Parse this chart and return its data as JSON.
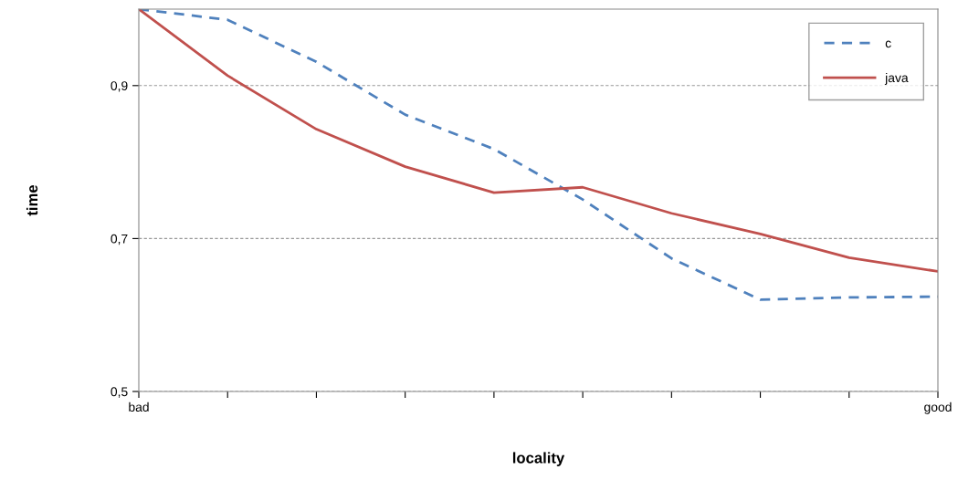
{
  "chart_data": {
    "type": "line",
    "xlabel": "locality",
    "ylabel": "time",
    "categories": [
      "bad",
      null,
      null,
      null,
      null,
      null,
      null,
      null,
      null,
      "good"
    ],
    "series": [
      {
        "name": "c",
        "color": "#4f81bd",
        "line_style": "dashed",
        "values": [
          1.0,
          0.986,
          0.931,
          0.862,
          0.817,
          0.751,
          0.674,
          0.62,
          0.623,
          0.624
        ]
      },
      {
        "name": "java",
        "color": "#c0504d",
        "line_style": "solid",
        "values": [
          1.0,
          0.913,
          0.843,
          0.794,
          0.76,
          0.767,
          0.733,
          0.706,
          0.675,
          0.657
        ]
      }
    ],
    "ylim": [
      0.5,
      1.0
    ],
    "yticks": [
      {
        "value": 0.5,
        "label": "0,5"
      },
      {
        "value": 0.7,
        "label": "0,7"
      },
      {
        "value": 0.9,
        "label": "0,9"
      }
    ],
    "grid": "y",
    "legend": "top right",
    "marker": "none"
  }
}
